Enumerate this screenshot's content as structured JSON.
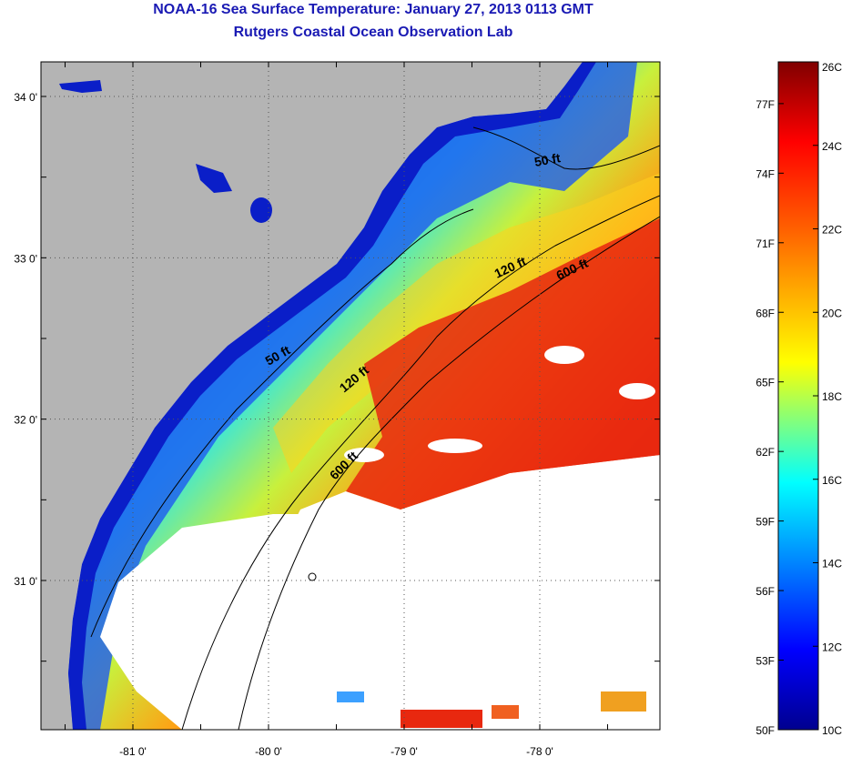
{
  "title": "NOAA-16 Sea Surface Temperature:  January 27, 2013 0113 GMT",
  "subtitle": "Rutgers Coastal Ocean Observation Lab",
  "map": {
    "lon_ticks": [
      {
        "value": -81,
        "label": "-81 0'"
      },
      {
        "value": -80,
        "label": "-80 0'"
      },
      {
        "value": -79,
        "label": "-79 0'"
      },
      {
        "value": -78,
        "label": "-78 0'"
      }
    ],
    "lat_ticks": [
      {
        "value": 34,
        "label": "34 0'"
      },
      {
        "value": 33,
        "label": "33 0'"
      },
      {
        "value": 32,
        "label": "32 0'"
      },
      {
        "value": 31,
        "label": "31 0'"
      }
    ],
    "contour_labels": [
      "50 ft",
      "50 ft",
      "120 ft",
      "120 ft",
      "600 ft",
      "600 ft"
    ]
  },
  "colorbar": {
    "fahrenheit": [
      "77F",
      "74F",
      "71F",
      "68F",
      "65F",
      "62F",
      "59F",
      "56F",
      "53F",
      "50F"
    ],
    "celsius": [
      "26C",
      "24C",
      "22C",
      "20C",
      "18C",
      "16C",
      "14C",
      "12C",
      "10C"
    ]
  },
  "colors": {
    "land": "#b4b4b4",
    "title": "#1a1ab4",
    "nodata": "#ffffff"
  }
}
